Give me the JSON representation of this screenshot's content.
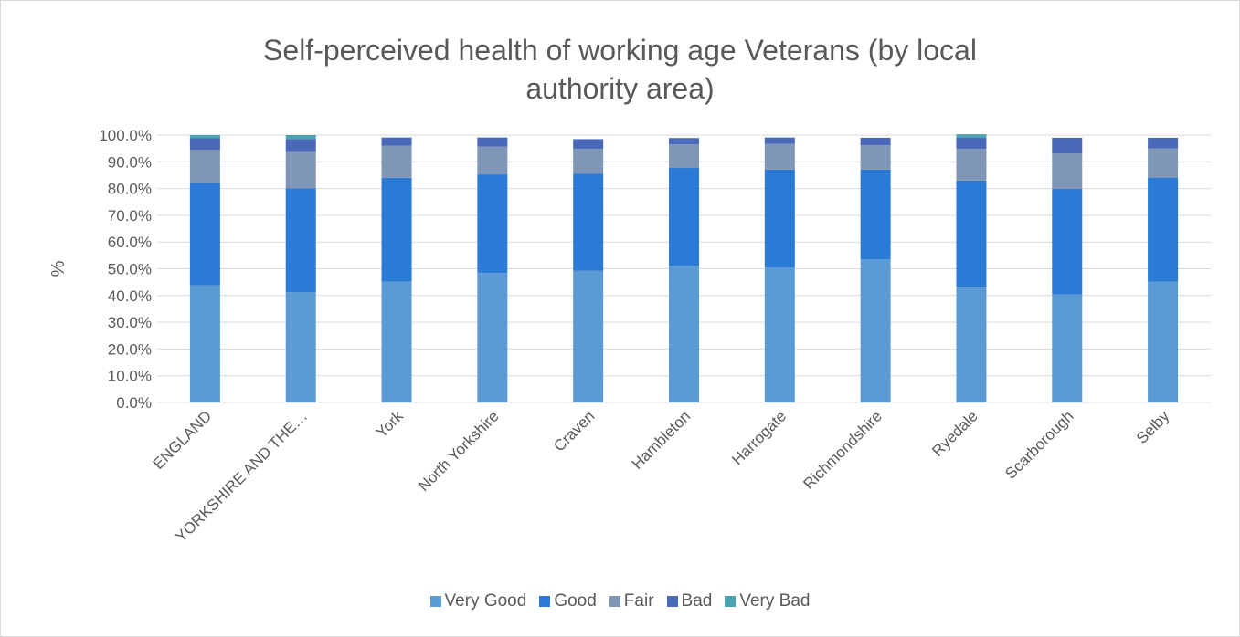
{
  "chart_data": {
    "type": "bar",
    "stacked": true,
    "title": "Self-perceived health of working age Veterans (by local authority area)",
    "xlabel": "",
    "ylabel": "%",
    "ylim": [
      0,
      100
    ],
    "yticks": [
      "0.0%",
      "10.0%",
      "20.0%",
      "30.0%",
      "40.0%",
      "50.0%",
      "60.0%",
      "70.0%",
      "80.0%",
      "90.0%",
      "100.0%"
    ],
    "grid": true,
    "legend_position": "bottom",
    "categories": [
      "ENGLAND",
      "YORKSHIRE AND THE…",
      "York",
      "North Yorkshire",
      "Craven",
      "Hambleton",
      "Harrogate",
      "Richmondshire",
      "Ryedale",
      "Scarborough",
      "Selby"
    ],
    "series": [
      {
        "name": "Very Good",
        "color": "#5b9bd5",
        "values": [
          43.8,
          41.2,
          45.2,
          48.4,
          49.3,
          51.2,
          50.5,
          53.5,
          43.3,
          40.4,
          45.2
        ]
      },
      {
        "name": "Good",
        "color": "#2b7ad6",
        "values": [
          38.4,
          38.9,
          38.8,
          36.9,
          36.2,
          36.5,
          36.6,
          33.6,
          39.7,
          39.5,
          38.9
        ]
      },
      {
        "name": "Fair",
        "color": "#7f96b6",
        "values": [
          12.3,
          13.6,
          12.0,
          10.4,
          9.4,
          8.8,
          9.6,
          9.1,
          11.9,
          13.2,
          10.9
        ]
      },
      {
        "name": "Bad",
        "color": "#4a68b8",
        "values": [
          4.3,
          4.8,
          3.1,
          3.4,
          3.6,
          2.4,
          2.4,
          2.8,
          4.2,
          5.9,
          4.0
        ]
      },
      {
        "name": "Very Bad",
        "color": "#4aa3b0",
        "values": [
          1.2,
          1.5,
          0.0,
          0.0,
          0.0,
          0.0,
          0.0,
          0.0,
          1.2,
          0.0,
          0.0
        ]
      }
    ]
  }
}
